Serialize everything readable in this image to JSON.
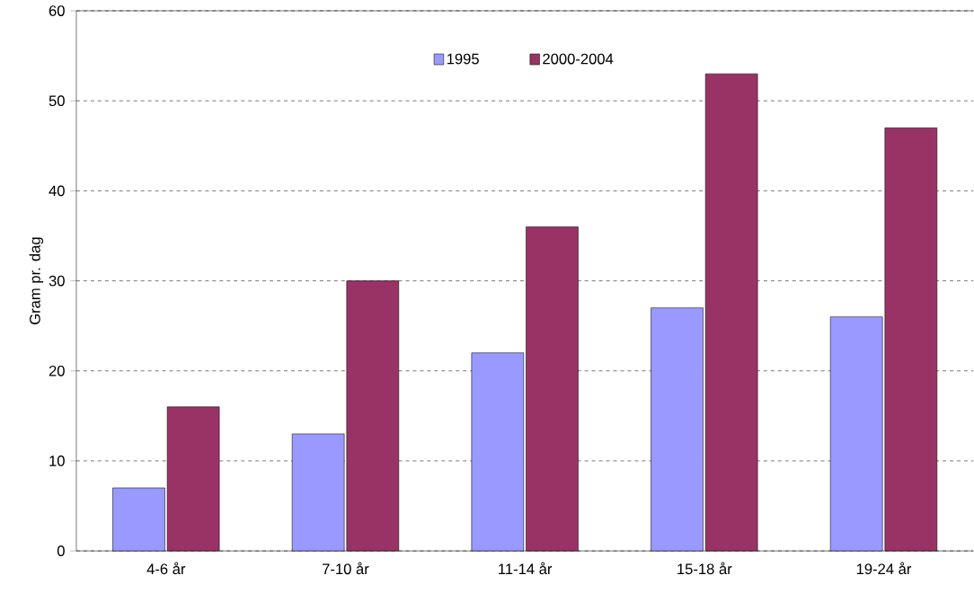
{
  "chart_data": {
    "type": "bar",
    "ylabel": "Gram pr. dag",
    "categories": [
      "4-6 år",
      "7-10 år",
      "11-14 år",
      "15-18 år",
      "19-24 år"
    ],
    "series": [
      {
        "name": "1995",
        "color": "#9999ff",
        "values": [
          7,
          13,
          22,
          27,
          26
        ]
      },
      {
        "name": "2000-2004",
        "color": "#993366",
        "values": [
          16,
          30,
          36,
          53,
          47
        ]
      }
    ],
    "ylim": [
      0,
      60
    ],
    "yticks": [
      0,
      10,
      20,
      30,
      40,
      50,
      60
    ],
    "grid": "y",
    "legend": "top"
  }
}
